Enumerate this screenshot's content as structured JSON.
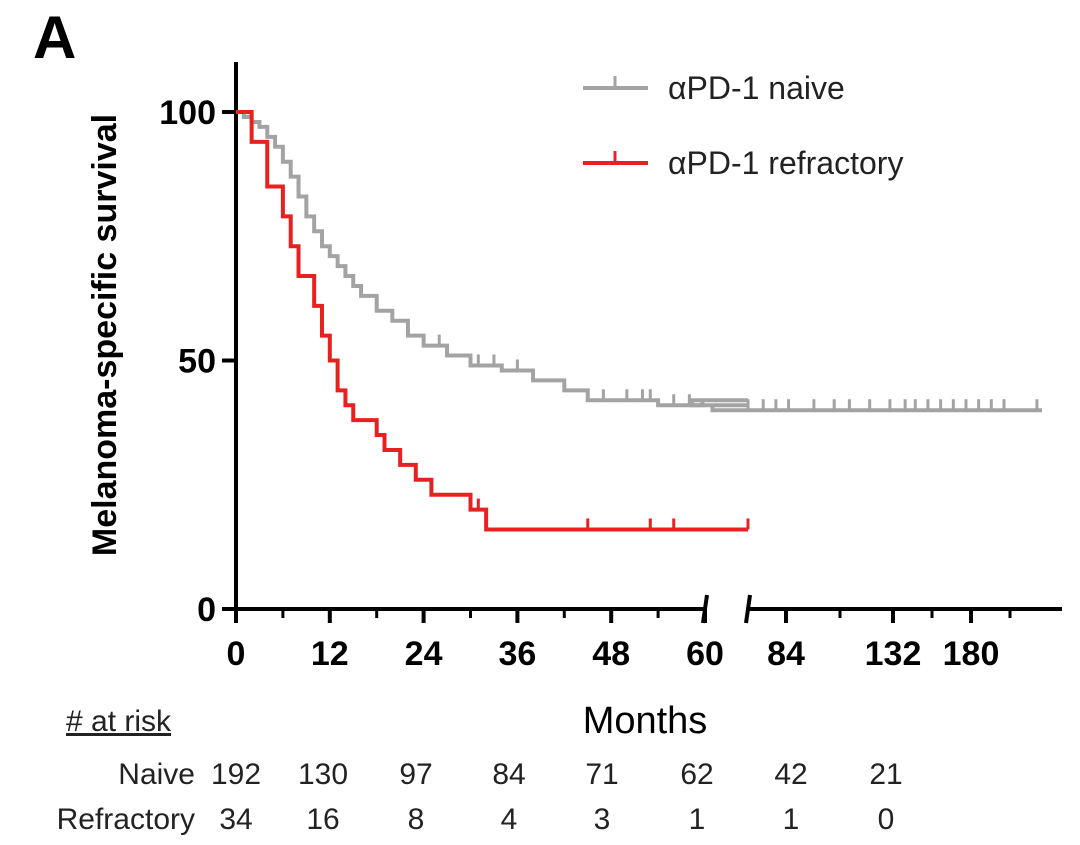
{
  "panel_label": "A",
  "chart_data": {
    "type": "line",
    "subtype": "kaplan-meier",
    "title": "",
    "xlabel": "Months",
    "ylabel": "Melanoma-specific survival",
    "ylim": [
      0,
      100
    ],
    "y_ticks": [
      "0",
      "50",
      "100"
    ],
    "x_ticks": [
      "0",
      "12",
      "24",
      "36",
      "48",
      "60",
      "84",
      "132",
      "180"
    ],
    "x_break": "axis broken between 60 and 84",
    "legend_position": "top-right",
    "series": [
      {
        "name": "αPD-1 naive",
        "color": "#a3a3a3",
        "steps": [
          [
            0,
            100
          ],
          [
            1,
            99
          ],
          [
            2,
            98
          ],
          [
            3,
            97
          ],
          [
            4,
            95
          ],
          [
            5,
            93
          ],
          [
            6,
            90
          ],
          [
            7,
            87
          ],
          [
            8,
            83
          ],
          [
            9,
            79
          ],
          [
            10,
            76
          ],
          [
            11,
            73
          ],
          [
            12,
            71
          ],
          [
            13,
            69
          ],
          [
            14,
            67
          ],
          [
            15,
            65
          ],
          [
            16,
            63
          ],
          [
            18,
            60
          ],
          [
            20,
            58
          ],
          [
            22,
            55
          ],
          [
            24,
            53
          ],
          [
            27,
            51
          ],
          [
            30,
            49
          ],
          [
            34,
            48
          ],
          [
            38,
            46
          ],
          [
            42,
            44
          ],
          [
            45,
            42
          ],
          [
            51,
            42
          ],
          [
            54,
            41
          ],
          [
            60,
            41
          ],
          [
            62,
            42
          ],
          [
            66,
            41
          ],
          [
            70,
            40
          ],
          [
            200,
            40
          ]
        ],
        "censor_marks": [
          15,
          20,
          22,
          26,
          31,
          33,
          36,
          47,
          50,
          52,
          53,
          56,
          58,
          65,
          67,
          70,
          72,
          74,
          76,
          78,
          80,
          82,
          84,
          90,
          95,
          100,
          110,
          118,
          124,
          132,
          140,
          146,
          150,
          155,
          160,
          165,
          170,
          175,
          180,
          185,
          198
        ]
      },
      {
        "name": "αPD-1 refractory",
        "color": "#e82020",
        "steps": [
          [
            0,
            100
          ],
          [
            2,
            94
          ],
          [
            4,
            85
          ],
          [
            6,
            79
          ],
          [
            7,
            73
          ],
          [
            8,
            67
          ],
          [
            10,
            61
          ],
          [
            11,
            55
          ],
          [
            12,
            50
          ],
          [
            13,
            44
          ],
          [
            14,
            41
          ],
          [
            15,
            38
          ],
          [
            18,
            35
          ],
          [
            19,
            32
          ],
          [
            21,
            29
          ],
          [
            23,
            26
          ],
          [
            25,
            23
          ],
          [
            30,
            20
          ],
          [
            32,
            16
          ],
          [
            60,
            16
          ],
          [
            84,
            16
          ]
        ],
        "censor_marks": [
          31,
          45,
          53,
          56,
          84
        ]
      }
    ],
    "at_risk": {
      "header": "# at risk",
      "rows": [
        {
          "label": "Naive",
          "counts": [
            "192",
            "130",
            "97",
            "84",
            "71",
            "62",
            "42",
            "21"
          ]
        },
        {
          "label": "Refractory",
          "counts": [
            "34",
            "16",
            "8",
            "4",
            "3",
            "1",
            "1",
            "0"
          ]
        }
      ]
    }
  }
}
